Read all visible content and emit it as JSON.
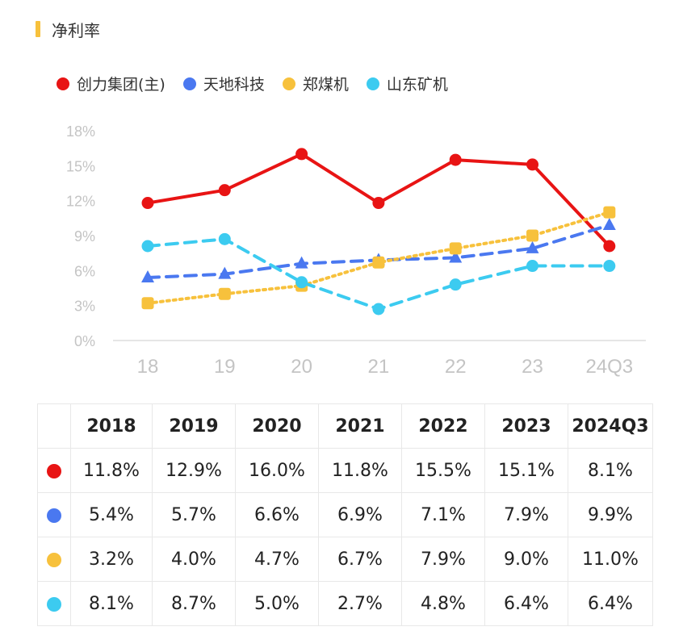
{
  "title": "净利率",
  "colors": {
    "title_bar": "#f7c13c",
    "axis_text": "#c4c4c4",
    "axis_line": "#e6e6e6"
  },
  "chart_data": {
    "type": "line",
    "categories": [
      "18",
      "19",
      "20",
      "21",
      "22",
      "23",
      "24Q3"
    ],
    "y_ticks": [
      "18%",
      "15%",
      "12%",
      "9%",
      "6%",
      "3%",
      "0%"
    ],
    "ylim": [
      0,
      18
    ],
    "grid": false,
    "legend_position": "top-left",
    "series": [
      {
        "name": "创力集团(主)",
        "values": [
          11.8,
          12.9,
          16.0,
          11.8,
          15.5,
          15.1,
          8.1
        ],
        "color": "#e81414",
        "style": "solid",
        "marker": "circle"
      },
      {
        "name": "天地科技",
        "values": [
          5.4,
          5.7,
          6.6,
          6.9,
          7.1,
          7.9,
          9.9
        ],
        "color": "#4a78f0",
        "style": "dashed",
        "marker": "triangle"
      },
      {
        "name": "郑煤机",
        "values": [
          3.2,
          4.0,
          4.7,
          6.7,
          7.9,
          9.0,
          11.0
        ],
        "color": "#f7c13c",
        "style": "dotted",
        "marker": "square"
      },
      {
        "name": "山东矿机",
        "values": [
          8.1,
          8.7,
          5.0,
          2.7,
          4.8,
          6.4,
          6.4
        ],
        "color": "#3ccbf0",
        "style": "dashed",
        "marker": "circle"
      }
    ]
  },
  "table": {
    "headers": [
      "2018",
      "2019",
      "2020",
      "2021",
      "2022",
      "2023",
      "2024Q3"
    ],
    "rows": [
      [
        "11.8%",
        "12.9%",
        "16.0%",
        "11.8%",
        "15.5%",
        "15.1%",
        "8.1%"
      ],
      [
        "5.4%",
        "5.7%",
        "6.6%",
        "6.9%",
        "7.1%",
        "7.9%",
        "9.9%"
      ],
      [
        "3.2%",
        "4.0%",
        "4.7%",
        "6.7%",
        "7.9%",
        "9.0%",
        "11.0%"
      ],
      [
        "8.1%",
        "8.7%",
        "5.0%",
        "2.7%",
        "4.8%",
        "6.4%",
        "6.4%"
      ]
    ]
  }
}
